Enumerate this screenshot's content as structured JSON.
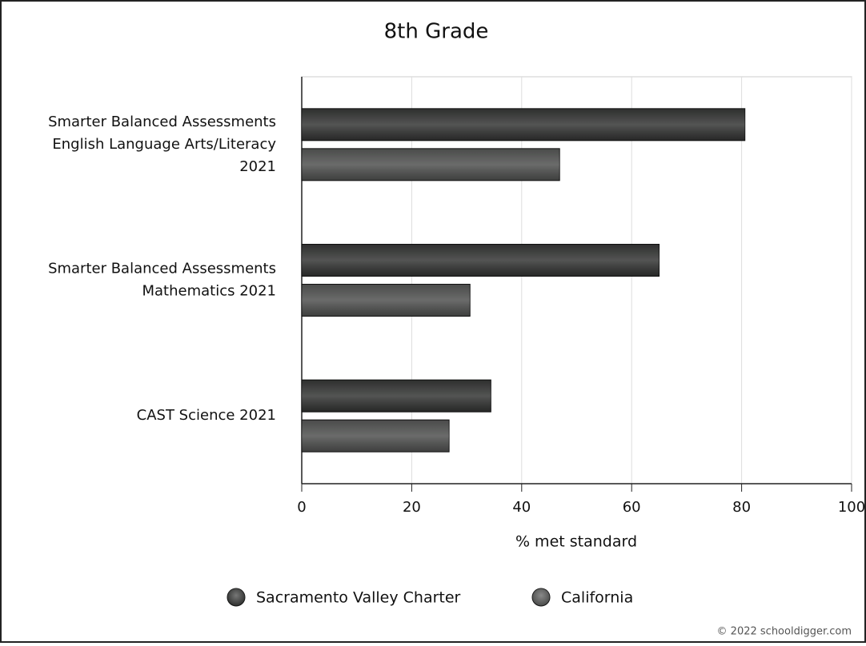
{
  "chart_data": {
    "type": "bar",
    "orientation": "horizontal",
    "title": "8th Grade",
    "categories": [
      [
        "Smarter Balanced Assessments",
        "English Language Arts/Literacy",
        "2021"
      ],
      [
        "Smarter Balanced Assessments",
        "Mathematics 2021"
      ],
      [
        "CAST Science 2021"
      ]
    ],
    "series": [
      {
        "name": "Sacramento Valley Charter",
        "color": "#2e2f2e",
        "values": [
          80.6,
          65.0,
          34.4
        ]
      },
      {
        "name": "California",
        "color": "#4a4b4a",
        "values": [
          46.9,
          30.6,
          26.8
        ]
      }
    ],
    "xlabel": "% met standard",
    "xlim": [
      0,
      100
    ],
    "xticks": [
      0,
      20,
      40,
      60,
      80,
      100
    ],
    "grid": true,
    "legend": "bottom",
    "credit": "© 2022 schooldigger.com"
  }
}
